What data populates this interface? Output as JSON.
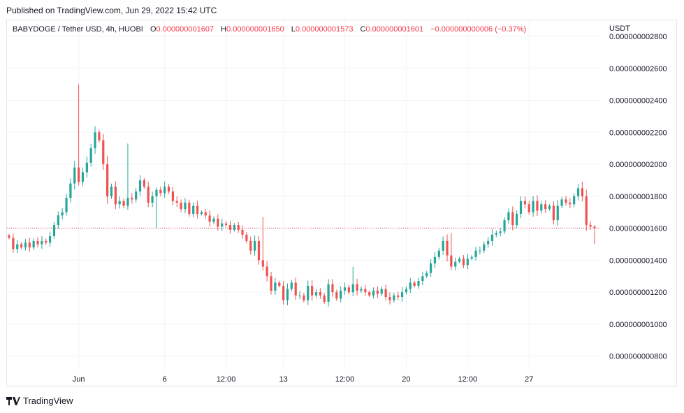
{
  "published": "Published on TradingView.com, Jun 29, 2022 15:42 UTC",
  "legend": {
    "symbol": "BABYDOGE / Tether USD, 4h, HUOBI",
    "open_label": "O",
    "open": "0.000000001607",
    "high_label": "H",
    "high": "0.000000001650",
    "low_label": "L",
    "low": "0.000000001573",
    "close_label": "C",
    "close": "0.000000001601",
    "change": "−0.000000000006 (−0.37%)"
  },
  "footer": {
    "brand": "TradingView"
  },
  "colors": {
    "up": "#26a69a",
    "down": "#ef5350",
    "grid": "#f0f3fa",
    "price_line": "#f23645"
  },
  "chart_data": {
    "type": "candlestick",
    "unit": "USDT",
    "ylim": [
      7.2e-10,
      2.8e-09
    ],
    "y_ticks": [
      "0.000000002800",
      "0.000000002600",
      "0.000000002400",
      "0.000000002200",
      "0.000000002000",
      "0.000000001800",
      "0.000000001600",
      "0.000000001400",
      "0.000000001200",
      "0.000000001000",
      "0.000000000800"
    ],
    "y_tick_values": [
      2800,
      2600,
      2400,
      2200,
      2000,
      1800,
      1600,
      1400,
      1200,
      1000,
      800
    ],
    "x_ticks": [
      "Jun",
      "6",
      "12:00",
      "13",
      "12:00",
      "20",
      "12:00",
      "27"
    ],
    "x_tick_bar_index": [
      17,
      38,
      53,
      67,
      82,
      97,
      112,
      127
    ],
    "last_price": 1601,
    "value_scale": 1e-12,
    "closes": [
      1540,
      1470,
      1500,
      1480,
      1510,
      1480,
      1520,
      1500,
      1520,
      1510,
      1550,
      1620,
      1680,
      1700,
      1790,
      1880,
      1980,
      1890,
      1950,
      2010,
      2100,
      2200,
      2150,
      2000,
      1800,
      1860,
      1750,
      1770,
      1740,
      1790,
      1780,
      1830,
      1900,
      1860,
      1760,
      1800,
      1840,
      1820,
      1860,
      1830,
      1770,
      1760,
      1720,
      1760,
      1690,
      1740,
      1690,
      1700,
      1680,
      1640,
      1660,
      1610,
      1630,
      1620,
      1590,
      1620,
      1590,
      1560,
      1520,
      1460,
      1520,
      1400,
      1360,
      1300,
      1210,
      1260,
      1240,
      1150,
      1220,
      1260,
      1180,
      1180,
      1150,
      1240,
      1180,
      1200,
      1180,
      1140,
      1250,
      1200,
      1160,
      1210,
      1230,
      1200,
      1250,
      1210,
      1220,
      1200,
      1180,
      1210,
      1190,
      1220,
      1170,
      1150,
      1180,
      1170,
      1200,
      1220,
      1260,
      1240,
      1270,
      1300,
      1320,
      1380,
      1420,
      1460,
      1520,
      1430,
      1360,
      1390,
      1410,
      1370,
      1410,
      1420,
      1460,
      1460,
      1500,
      1520,
      1560,
      1570,
      1580,
      1650,
      1700,
      1620,
      1690,
      1770,
      1750,
      1700,
      1770,
      1710,
      1750,
      1720,
      1740,
      1650,
      1740,
      1780,
      1760,
      1750,
      1800,
      1850,
      1800,
      1620,
      1610,
      1601
    ]
  }
}
